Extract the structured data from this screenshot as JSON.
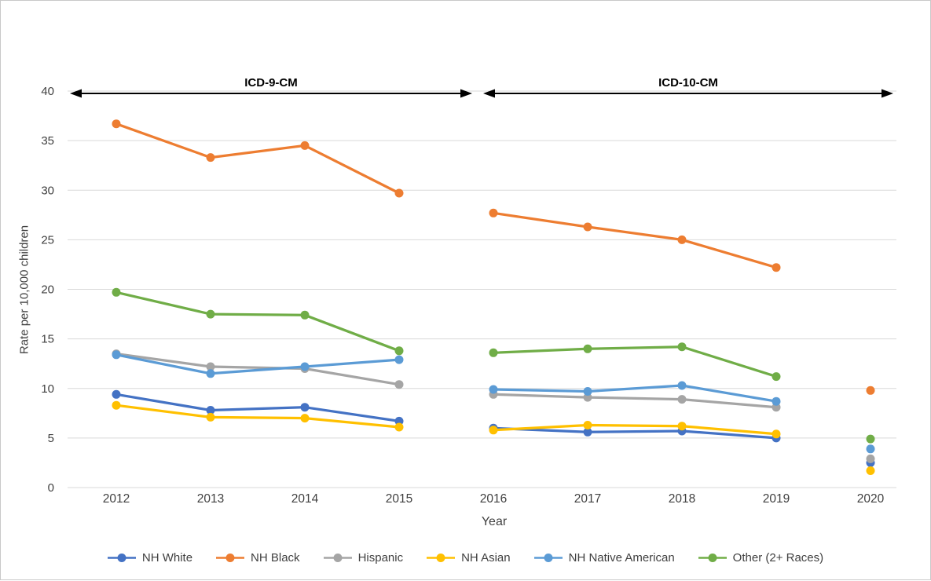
{
  "figure": {
    "background": "#ffffff",
    "border_color": "#c9c9c9",
    "grid_color": "#d9d9d9",
    "text_color": "#404040",
    "annotation_color": "#000000"
  },
  "chart_data": {
    "type": "line",
    "title": "",
    "xlabel": "Year",
    "ylabel": "Rate per 10,000 children",
    "ylim": [
      0,
      40
    ],
    "ytick_step": 5,
    "yticks": [
      "0",
      "5",
      "10",
      "15",
      "20",
      "25",
      "30",
      "35",
      "40"
    ],
    "categories": [
      "2012",
      "2013",
      "2014",
      "2015",
      "2016",
      "2017",
      "2018",
      "2019",
      "2020"
    ],
    "connected_ranges": [
      [
        0,
        3
      ],
      [
        4,
        7
      ]
    ],
    "isolated_indices": [
      8
    ],
    "grid": true,
    "legend_position": "bottom",
    "annotations": [
      {
        "label": "ICD-9-CM",
        "covers": "2012-2015"
      },
      {
        "label": "ICD-10-CM",
        "covers": "2016-2020"
      }
    ],
    "series": [
      {
        "name": "NH White",
        "color": "#4472C4",
        "values": [
          9.4,
          7.8,
          8.1,
          6.7,
          6.0,
          5.6,
          5.7,
          5.0,
          2.5
        ]
      },
      {
        "name": "NH Black",
        "color": "#ED7D31",
        "values": [
          36.7,
          33.3,
          34.5,
          29.7,
          27.7,
          26.3,
          25.0,
          22.2,
          9.8
        ]
      },
      {
        "name": "Hispanic",
        "color": "#A5A5A5",
        "values": [
          13.5,
          12.2,
          12.0,
          10.4,
          9.4,
          9.1,
          8.9,
          8.1,
          2.9
        ]
      },
      {
        "name": "NH Asian",
        "color": "#FFC000",
        "values": [
          8.3,
          7.1,
          7.0,
          6.1,
          5.8,
          6.3,
          6.2,
          5.4,
          1.7
        ]
      },
      {
        "name": "NH Native American",
        "color": "#5B9BD5",
        "values": [
          13.4,
          11.5,
          12.2,
          12.9,
          9.9,
          9.7,
          10.3,
          8.7,
          3.9
        ]
      },
      {
        "name": "Other (2+ Races)",
        "color": "#70AD47",
        "values": [
          19.7,
          17.5,
          17.4,
          13.8,
          13.6,
          14.0,
          14.2,
          11.2,
          4.9
        ]
      }
    ]
  }
}
